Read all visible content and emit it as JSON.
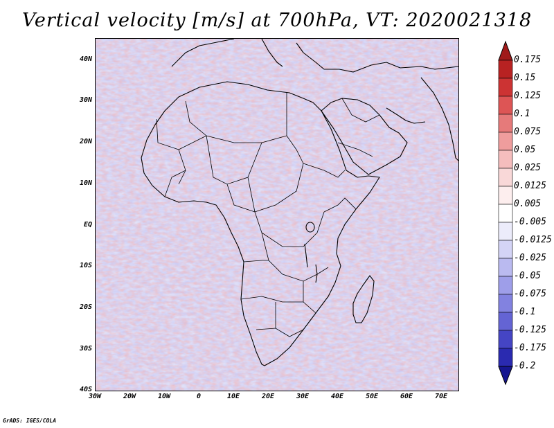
{
  "title": "Vertical velocity [m/s] at 700hPa, VT: 2020021318",
  "credit": "GrADS: IGES/COLA",
  "map": {
    "region": "Africa",
    "variable": "Vertical velocity",
    "units": "m/s",
    "level": "700hPa",
    "valid_time": "2020021318",
    "lon_range": [
      -30,
      75
    ],
    "lat_range": [
      -40,
      45
    ]
  },
  "y_axis_labels": [
    "40N",
    "30N",
    "20N",
    "10N",
    "EQ",
    "10S",
    "20S",
    "30S",
    "40S"
  ],
  "x_axis_labels": [
    "30W",
    "20W",
    "10W",
    "0",
    "10E",
    "20E",
    "30E",
    "40E",
    "50E",
    "60E",
    "70E"
  ],
  "colorbar": {
    "labels": [
      "0.175",
      "0.15",
      "0.125",
      "0.1",
      "0.075",
      "0.05",
      "0.025",
      "0.0125",
      "0.005",
      "-0.005",
      "-0.0125",
      "-0.025",
      "-0.05",
      "-0.075",
      "-0.1",
      "-0.125",
      "-0.175",
      "-0.2"
    ],
    "colors": [
      "#a01a1a",
      "#b82222",
      "#cc3333",
      "#dd5555",
      "#e67a7a",
      "#ef9d9d",
      "#f5bdbd",
      "#f9d8d8",
      "#fdeeee",
      "#ffffff",
      "#ececfb",
      "#d4d4f6",
      "#babaf0",
      "#9e9ee9",
      "#8282e0",
      "#6464d4",
      "#4545c4",
      "#2a2ab0",
      "#161690"
    ]
  }
}
